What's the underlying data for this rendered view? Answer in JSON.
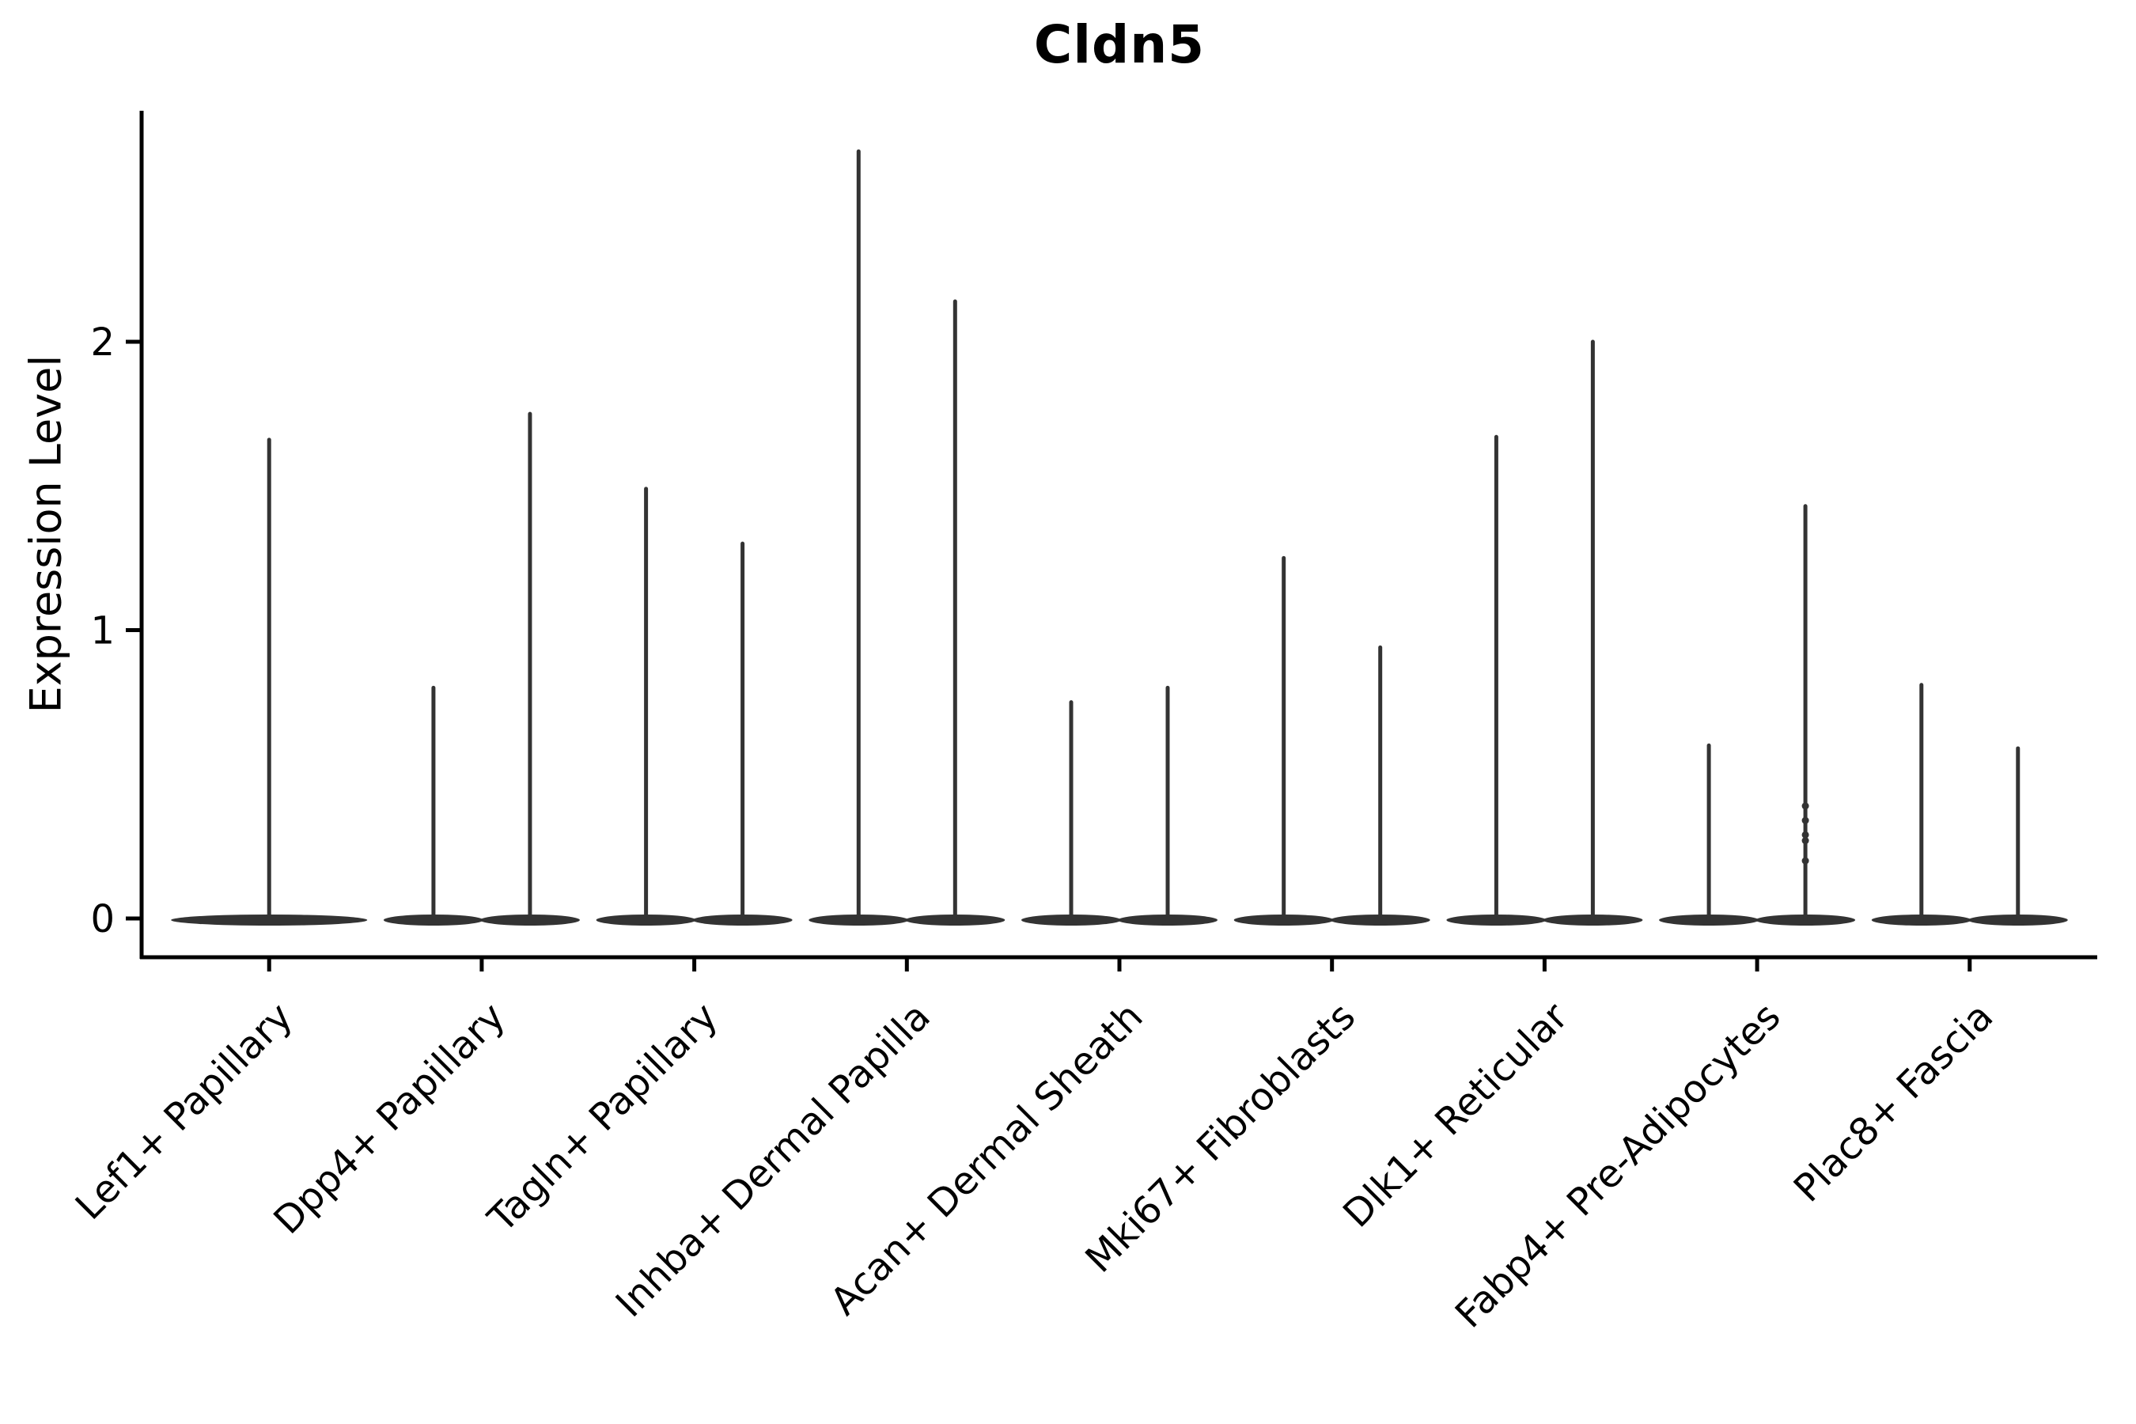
{
  "figure": {
    "background": "#ffffff"
  },
  "chart_data": {
    "type": "violin",
    "title": "Cldn5",
    "xlabel": "",
    "ylabel": "Expression Level",
    "yticks": [
      "0",
      "1",
      "2"
    ],
    "ytick_values": [
      0,
      1,
      2
    ],
    "ylim": [
      -0.13,
      2.8
    ],
    "grid": false,
    "legend": null,
    "colors": {
      "violin": "#333333",
      "axis": "#000000",
      "text": "#000000"
    },
    "categories": [
      "Lef1+ Papillary",
      "Dpp4+ Papillary",
      "Tagln+ Papillary",
      "Inhba+ Dermal Papilla",
      "Acan+ Dermal Sheath",
      "Mki67+ Fibroblasts",
      "Dlk1+ Reticular",
      "Fabp4+ Pre-Adipocytes",
      "Plac8+ Fascia"
    ],
    "violins": [
      {
        "category": "Lef1+ Papillary",
        "maxima": [
          1.66
        ]
      },
      {
        "category": "Dpp4+ Papillary",
        "maxima": [
          0.8,
          1.75
        ]
      },
      {
        "category": "Tagln+ Papillary",
        "maxima": [
          1.49,
          1.3
        ]
      },
      {
        "category": "Inhba+ Dermal Papilla",
        "maxima": [
          2.66,
          2.14
        ]
      },
      {
        "category": "Acan+ Dermal Sheath",
        "maxima": [
          0.75,
          0.8
        ]
      },
      {
        "category": "Mki67+ Fibroblasts",
        "maxima": [
          1.25,
          0.94
        ]
      },
      {
        "category": "Dlk1+ Reticular",
        "maxima": [
          1.67,
          2.0
        ]
      },
      {
        "category": "Fabp4+ Pre-Adipocytes",
        "maxima": [
          0.6,
          1.43
        ],
        "points": {
          "violin_index": 1,
          "values": [
            0.2,
            0.27,
            0.29,
            0.34,
            0.39
          ]
        }
      },
      {
        "category": "Plac8+ Fascia",
        "maxima": [
          0.81,
          0.59
        ]
      }
    ],
    "description": "Violin plot of Cldn5 expression; near-zero expression in all clusters (flat violins at 0 with thin density spikes up to the listed maxima)."
  }
}
